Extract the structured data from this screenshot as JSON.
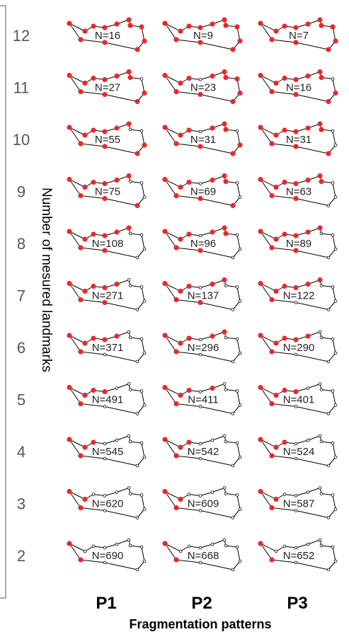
{
  "chart_data": {
    "type": "grid of shape outlines",
    "xlabel": "Fragmentation patterns",
    "ylabel": "Number of mesured landmarks",
    "columns": [
      "P1",
      "P2",
      "P3"
    ],
    "rows": [
      12,
      11,
      10,
      9,
      8,
      7,
      6,
      5,
      4,
      3,
      2
    ],
    "n_label_prefix": "N=",
    "counts": [
      [
        16,
        9,
        7
      ],
      [
        27,
        23,
        16
      ],
      [
        55,
        31,
        31
      ],
      [
        75,
        69,
        63
      ],
      [
        108,
        96,
        89
      ],
      [
        271,
        137,
        122
      ],
      [
        371,
        296,
        290
      ],
      [
        491,
        411,
        401
      ],
      [
        545,
        542,
        524
      ],
      [
        620,
        609,
        587
      ],
      [
        690,
        668,
        652
      ]
    ],
    "measured_landmarks": [
      [
        [
          0,
          1,
          2,
          3,
          4,
          5,
          6,
          7,
          8,
          9,
          10,
          11
        ],
        [
          0,
          1,
          2,
          3,
          4,
          5,
          6,
          7,
          8,
          9,
          10,
          11
        ],
        [
          0,
          1,
          2,
          3,
          4,
          5,
          6,
          7,
          8,
          9,
          10,
          11
        ]
      ],
      [
        [
          0,
          1,
          2,
          3,
          4,
          5,
          6,
          8,
          9,
          10,
          11
        ],
        [
          0,
          1,
          2,
          4,
          5,
          6,
          7,
          8,
          9,
          10,
          11
        ],
        [
          0,
          1,
          2,
          3,
          4,
          5,
          6,
          8,
          9,
          10,
          11
        ]
      ],
      [
        [
          0,
          1,
          2,
          3,
          4,
          5,
          8,
          9,
          10,
          11
        ],
        [
          0,
          1,
          2,
          4,
          5,
          6,
          8,
          9,
          10,
          11
        ],
        [
          0,
          1,
          2,
          3,
          4,
          5,
          6,
          9,
          10,
          11
        ]
      ],
      [
        [
          0,
          1,
          2,
          3,
          4,
          5,
          9,
          10,
          11
        ],
        [
          0,
          1,
          2,
          4,
          5,
          6,
          9,
          10,
          11
        ],
        [
          0,
          1,
          2,
          3,
          4,
          5,
          6,
          10,
          11
        ]
      ],
      [
        [
          0,
          1,
          2,
          3,
          4,
          5,
          10,
          11
        ],
        [
          0,
          1,
          2,
          4,
          5,
          6,
          10,
          11
        ],
        [
          0,
          1,
          2,
          3,
          4,
          5,
          10,
          11
        ]
      ],
      [
        [
          0,
          1,
          2,
          3,
          4,
          10,
          11
        ],
        [
          0,
          1,
          2,
          4,
          5,
          10,
          11
        ],
        [
          0,
          1,
          2,
          3,
          4,
          5,
          11
        ]
      ],
      [
        [
          0,
          1,
          2,
          3,
          4,
          11
        ],
        [
          0,
          1,
          2,
          4,
          5,
          11
        ],
        [
          0,
          1,
          2,
          3,
          4,
          11
        ]
      ],
      [
        [
          0,
          1,
          2,
          3,
          11
        ],
        [
          0,
          1,
          2,
          4,
          11
        ],
        [
          0,
          1,
          2,
          3,
          11
        ]
      ],
      [
        [
          0,
          1,
          2,
          11
        ],
        [
          0,
          1,
          2,
          11
        ],
        [
          0,
          1,
          2,
          11
        ]
      ],
      [
        [
          0,
          1,
          11
        ],
        [
          0,
          1,
          11
        ],
        [
          0,
          1,
          11
        ]
      ],
      [
        [
          0,
          11
        ],
        [
          0,
          11
        ],
        [
          0,
          11
        ]
      ]
    ],
    "marker_colors": {
      "measured": "#e8282d",
      "missing": "#ffffff"
    }
  }
}
